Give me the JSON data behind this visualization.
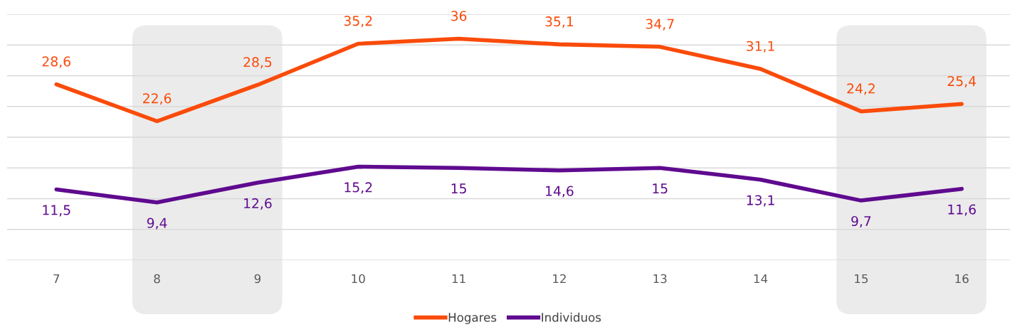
{
  "chart_data": {
    "type": "line",
    "categories": [
      "7",
      "8",
      "9",
      "10",
      "11",
      "12",
      "13",
      "14",
      "15",
      "16"
    ],
    "series": [
      {
        "name": "Hogares",
        "color": "#fa4b0a",
        "values": [
          28.6,
          22.6,
          28.5,
          35.2,
          36,
          35.1,
          34.7,
          31.1,
          24.2,
          25.4
        ],
        "value_labels": [
          "28,6",
          "22,6",
          "28,5",
          "35,2",
          "36",
          "35,1",
          "34,7",
          "31,1",
          "24,2",
          "25,4"
        ]
      },
      {
        "name": "Individuos",
        "color": "#5f0a8f",
        "values": [
          11.5,
          9.4,
          12.6,
          15.2,
          15,
          14.6,
          15,
          13.1,
          9.7,
          11.6
        ],
        "value_labels": [
          "11,5",
          "9,4",
          "12,6",
          "15,2",
          "15",
          "14,6",
          "15",
          "13,1",
          "9,7",
          "11,6"
        ]
      }
    ],
    "ylim": [
      0,
      40
    ],
    "yticks": [
      {
        "value": 0,
        "label": null
      },
      {
        "value": 5,
        "label": null
      },
      {
        "value": 10,
        "label": null
      },
      {
        "value": 15,
        "label": null
      },
      {
        "value": 20,
        "label": null
      },
      {
        "value": 25,
        "label": null
      },
      {
        "value": 30,
        "label": null
      },
      {
        "value": 35,
        "label": null
      },
      {
        "value": 40,
        "label": null
      }
    ],
    "tick_labels": "x",
    "grid": "y",
    "legend": "bottom",
    "marker": "none",
    "line_style": "solid",
    "bands": [
      {
        "axis": "x",
        "from": "8",
        "to": "9",
        "color": "#ebebeb"
      },
      {
        "axis": "x",
        "from": "15",
        "to": "16",
        "color": "#ebebeb"
      }
    ]
  }
}
